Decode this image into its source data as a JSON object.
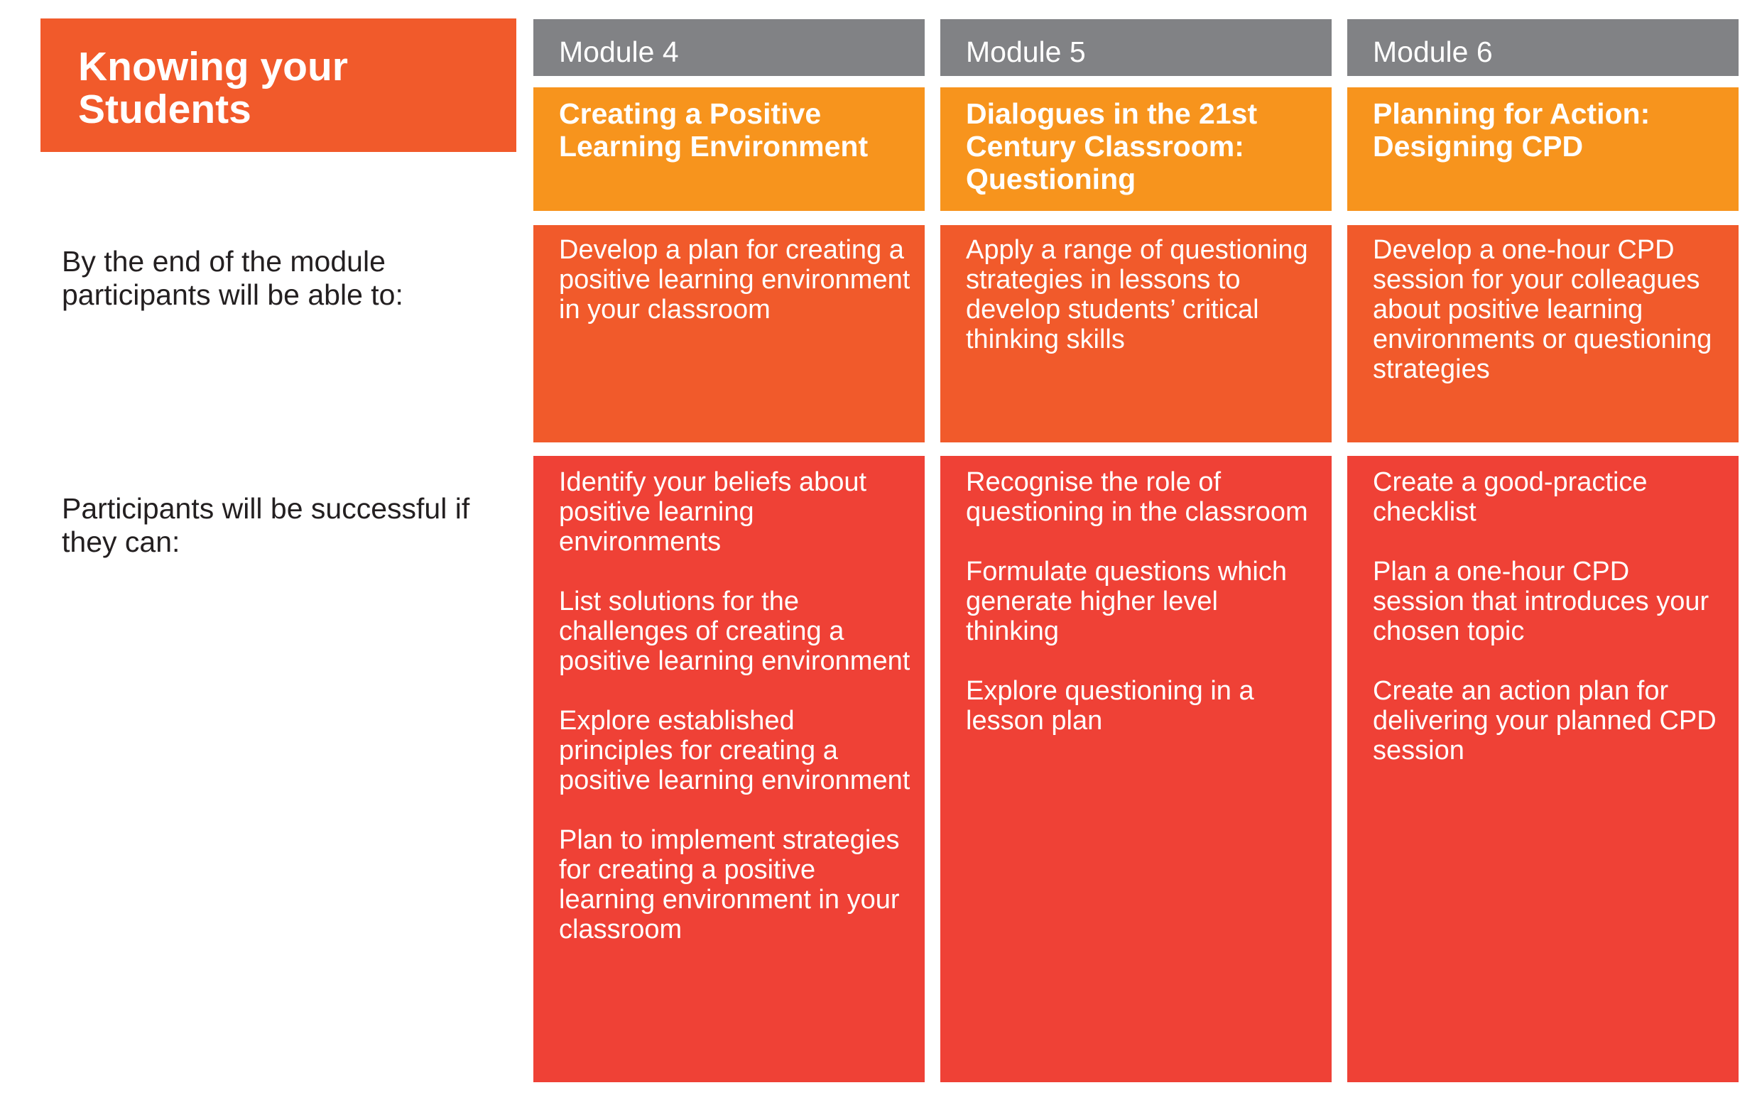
{
  "title": "Knowing your Students",
  "row_labels": {
    "objectives": "By the end of the module participants will be able to:",
    "criteria": "Participants will be successful if they can:"
  },
  "modules": [
    {
      "tag": "Module 4",
      "title": "Creating a Positive Learning Environment",
      "objective": "Develop a plan for creating a positive learning environment in your classroom",
      "criteria": [
        "Identify your beliefs about positive learning environments",
        "List solutions for the challenges of creating a positive learning environment",
        "Explore established principles for creating a positive learning environment",
        "Plan to implement strategies for creating a positive learning environment in your classroom"
      ]
    },
    {
      "tag": "Module 5",
      "title": "Dialogues in the 21st Century Classroom: Questioning",
      "objective": "Apply a range of questioning strategies in lessons to develop students’ critical thinking skills",
      "criteria": [
        "Recognise the role of questioning in the classroom",
        "Formulate questions which generate higher level thinking",
        "Explore questioning in a lesson plan"
      ]
    },
    {
      "tag": "Module 6",
      "title": "Planning for Action: Designing CPD",
      "objective": "Develop a one-hour CPD session for your colleagues about positive learning environments or questioning strategies",
      "criteria": [
        "Create a good-practice checklist",
        "Plan a one-hour CPD session that introduces your chosen topic",
        "Create an action plan for delivering your planned CPD session"
      ]
    }
  ],
  "colors": {
    "title_block": "#f15a2b",
    "module_tag": "#818285",
    "module_title": "#f7941d",
    "objective": "#f15a2b",
    "criteria": "#ef4136",
    "label_text": "#231f20"
  }
}
